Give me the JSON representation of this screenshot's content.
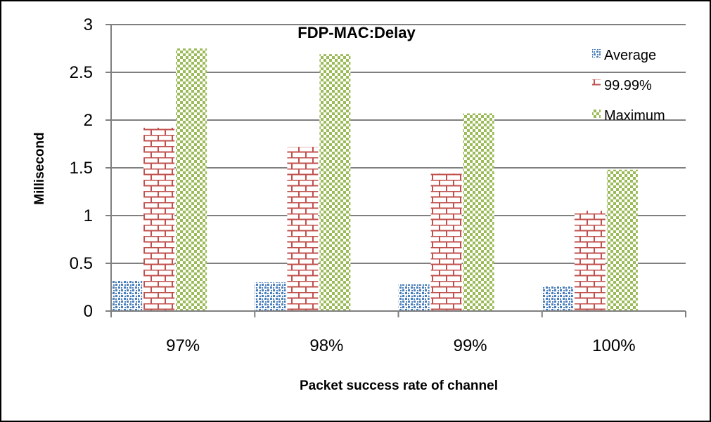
{
  "chart_data": {
    "type": "bar",
    "title": "FDP-MAC:Delay",
    "xlabel": "Packet success rate of channel",
    "ylabel": "Millisecond",
    "categories": [
      "97%",
      "98%",
      "99%",
      "100%"
    ],
    "series": [
      {
        "name": "Average",
        "color": "#4a7ebb",
        "pattern": "checker-small",
        "values": [
          0.32,
          0.3,
          0.28,
          0.26
        ]
      },
      {
        "name": "99.99%",
        "color": "#c0504d",
        "pattern": "brick",
        "values": [
          1.92,
          1.72,
          1.44,
          1.05
        ]
      },
      {
        "name": "Maximum",
        "color": "#9bbb59",
        "pattern": "checker",
        "values": [
          2.75,
          2.69,
          2.07,
          1.48
        ]
      }
    ],
    "yticks": [
      "0",
      "0.5",
      "1",
      "1.5",
      "2",
      "2.5",
      "3"
    ],
    "ylim": [
      0,
      3
    ],
    "grid": true,
    "legend": "top-right"
  }
}
